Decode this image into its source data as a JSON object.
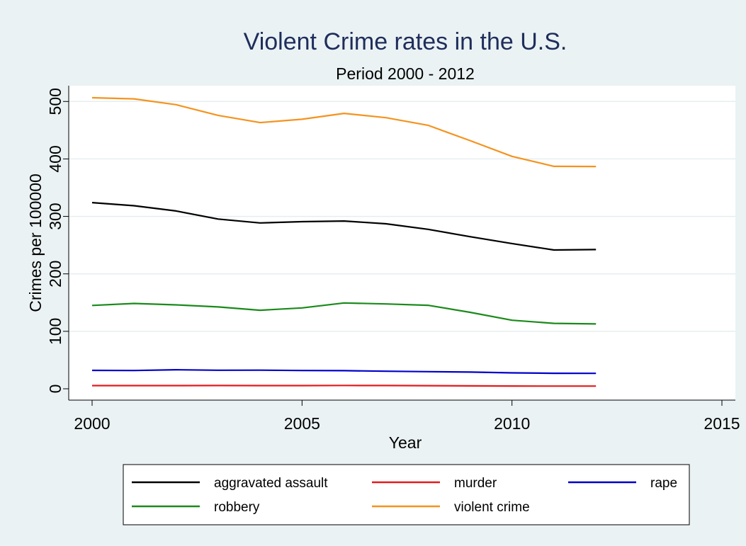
{
  "chart_data": {
    "type": "line",
    "title": "Violent Crime rates in the U.S.",
    "subtitle": "Period 2000 - 2012",
    "xlabel": "Year",
    "ylabel": "Crimes per 100000",
    "xlim": [
      2000,
      2015
    ],
    "ylim": [
      0,
      525
    ],
    "xticks": [
      2000,
      2005,
      2010,
      2015
    ],
    "yticks": [
      0,
      100,
      200,
      300,
      400,
      500
    ],
    "grid": true,
    "legend_position": "bottom",
    "x": [
      2000,
      2001,
      2002,
      2003,
      2004,
      2005,
      2006,
      2007,
      2008,
      2009,
      2010,
      2011,
      2012
    ],
    "series": [
      {
        "name": "aggravated assault",
        "color": "#000000",
        "values": [
          324.0,
          318.6,
          309.5,
          295.4,
          288.6,
          290.8,
          292.0,
          287.2,
          277.5,
          264.7,
          252.8,
          241.5,
          242.3
        ]
      },
      {
        "name": "murder",
        "color": "#e41a1c",
        "values": [
          5.5,
          5.6,
          5.6,
          5.7,
          5.5,
          5.6,
          5.8,
          5.7,
          5.4,
          5.0,
          4.8,
          4.7,
          4.7
        ]
      },
      {
        "name": "rape",
        "color": "#0000cc",
        "values": [
          32.0,
          31.8,
          33.1,
          32.3,
          32.4,
          31.8,
          31.6,
          30.6,
          29.8,
          29.1,
          27.7,
          27.0,
          26.9
        ]
      },
      {
        "name": "robbery",
        "color": "#1a8a1a",
        "values": [
          145.0,
          148.5,
          146.1,
          142.5,
          136.7,
          140.8,
          149.4,
          147.6,
          145.3,
          133.1,
          119.3,
          113.9,
          112.9
        ]
      },
      {
        "name": "violent crime",
        "color": "#f5931e",
        "values": [
          506.5,
          504.5,
          494.4,
          475.8,
          463.2,
          469.0,
          479.3,
          471.8,
          458.6,
          431.9,
          404.5,
          387.1,
          386.9
        ]
      }
    ]
  }
}
